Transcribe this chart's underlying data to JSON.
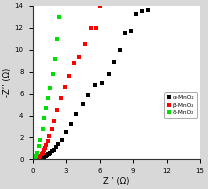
{
  "alpha_x": [
    0.1,
    0.15,
    0.2,
    0.25,
    0.3,
    0.35,
    0.4,
    0.45,
    0.5,
    0.55,
    0.6,
    0.65,
    0.7,
    0.75,
    0.8,
    0.85,
    0.9,
    0.95,
    1.0,
    1.05,
    1.1,
    1.15,
    1.2,
    1.3,
    1.4,
    1.5,
    1.6,
    1.75,
    1.9,
    2.1,
    2.3,
    2.6,
    3.0,
    3.4,
    3.9,
    4.5,
    5.0,
    5.6,
    6.2,
    6.8,
    7.3,
    7.8,
    8.3,
    8.8,
    9.3,
    9.8,
    10.3
  ],
  "alpha_y": [
    0.01,
    0.02,
    0.03,
    0.04,
    0.05,
    0.06,
    0.07,
    0.08,
    0.09,
    0.1,
    0.11,
    0.12,
    0.13,
    0.14,
    0.15,
    0.16,
    0.18,
    0.2,
    0.22,
    0.25,
    0.28,
    0.31,
    0.35,
    0.4,
    0.46,
    0.53,
    0.62,
    0.75,
    0.9,
    1.1,
    1.4,
    1.8,
    2.5,
    3.2,
    4.1,
    5.1,
    5.9,
    6.8,
    7.0,
    7.8,
    8.9,
    10.0,
    11.5,
    11.7,
    13.3,
    13.5,
    13.6
  ],
  "beta_x": [
    0.1,
    0.15,
    0.2,
    0.25,
    0.3,
    0.35,
    0.4,
    0.5,
    0.6,
    0.7,
    0.8,
    0.9,
    1.0,
    1.1,
    1.2,
    1.35,
    1.5,
    1.7,
    1.9,
    2.2,
    2.5,
    2.9,
    3.3,
    3.7,
    4.2,
    4.7,
    5.2,
    5.7,
    6.0
  ],
  "beta_y": [
    0.01,
    0.02,
    0.03,
    0.05,
    0.07,
    0.1,
    0.13,
    0.18,
    0.25,
    0.35,
    0.48,
    0.63,
    0.82,
    1.05,
    1.3,
    1.7,
    2.1,
    2.8,
    3.5,
    4.5,
    5.6,
    6.6,
    7.6,
    8.8,
    9.3,
    10.5,
    12.0,
    12.0,
    14.0
  ],
  "delta_x": [
    0.1,
    0.15,
    0.2,
    0.3,
    0.4,
    0.55,
    0.7,
    0.9,
    1.05,
    1.2,
    1.4,
    1.6,
    1.8,
    2.0,
    2.2,
    2.4
  ],
  "delta_y": [
    0.02,
    0.05,
    0.1,
    0.3,
    0.6,
    1.2,
    1.8,
    2.8,
    3.8,
    4.7,
    5.6,
    6.5,
    7.8,
    9.2,
    11.0,
    13.0
  ],
  "alpha_color": "#000000",
  "beta_color": "#ff0000",
  "delta_color": "#00dd00",
  "marker": "s",
  "markersize": 3.0,
  "xlim": [
    0,
    15
  ],
  "ylim": [
    0,
    14
  ],
  "xticks": [
    0,
    3,
    6,
    9,
    12,
    15
  ],
  "yticks": [
    0,
    2,
    4,
    6,
    8,
    10,
    12,
    14
  ],
  "xlabel": "Z ’ (Ω)",
  "ylabel": "-Z’’ (Ω)",
  "legend_labels": [
    "α-MnO₂",
    "β-MnO₂",
    "δ-MnO₂"
  ],
  "bg_color": "#d8d8d8",
  "plot_bg_color": "#ffffff"
}
